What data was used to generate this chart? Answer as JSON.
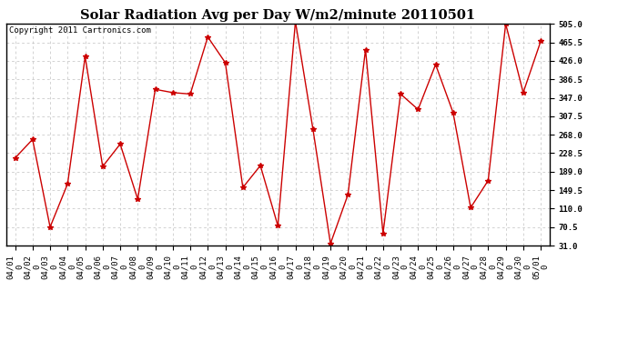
{
  "title": "Solar Radiation Avg per Day W/m2/minute 20110501",
  "copyright": "Copyright 2011 Cartronics.com",
  "dates": [
    "04/01\n0",
    "04/02\n0",
    "04/03\n0",
    "04/04\n0",
    "04/05\n0",
    "04/06\n0",
    "04/07\n0",
    "04/08\n0",
    "04/09\n0",
    "04/10\n0",
    "04/11\n0",
    "04/12\n0",
    "04/13\n0",
    "04/14\n0",
    "04/15\n0",
    "04/16\n0",
    "04/17\n0",
    "04/18\n0",
    "04/19\n0",
    "04/20\n0",
    "04/21\n0",
    "04/22\n0",
    "04/23\n0",
    "04/24\n0",
    "04/25\n0",
    "04/26\n0",
    "04/27\n0",
    "04/28\n0",
    "04/29\n0",
    "04/30\n0",
    "05/01\n0"
  ],
  "values": [
    218.0,
    258.0,
    70.5,
    163.0,
    435.0,
    200.0,
    248.0,
    130.0,
    365.0,
    358.0,
    355.0,
    477.0,
    422.0,
    155.0,
    202.0,
    73.0,
    510.0,
    280.0,
    35.0,
    140.0,
    450.0,
    57.0,
    355.0,
    322.0,
    418.0,
    315.0,
    112.0,
    170.0,
    505.0,
    358.0,
    468.0
  ],
  "line_color": "#cc0000",
  "marker": "*",
  "marker_size": 4,
  "bg_color": "#ffffff",
  "grid_color": "#c0c0c0",
  "ylim": [
    31.0,
    505.0
  ],
  "yticks": [
    31.0,
    70.5,
    110.0,
    149.5,
    189.0,
    228.5,
    268.0,
    307.5,
    347.0,
    386.5,
    426.0,
    465.5,
    505.0
  ],
  "title_fontsize": 10.5,
  "copyright_fontsize": 6.5,
  "tick_fontsize": 6.5
}
